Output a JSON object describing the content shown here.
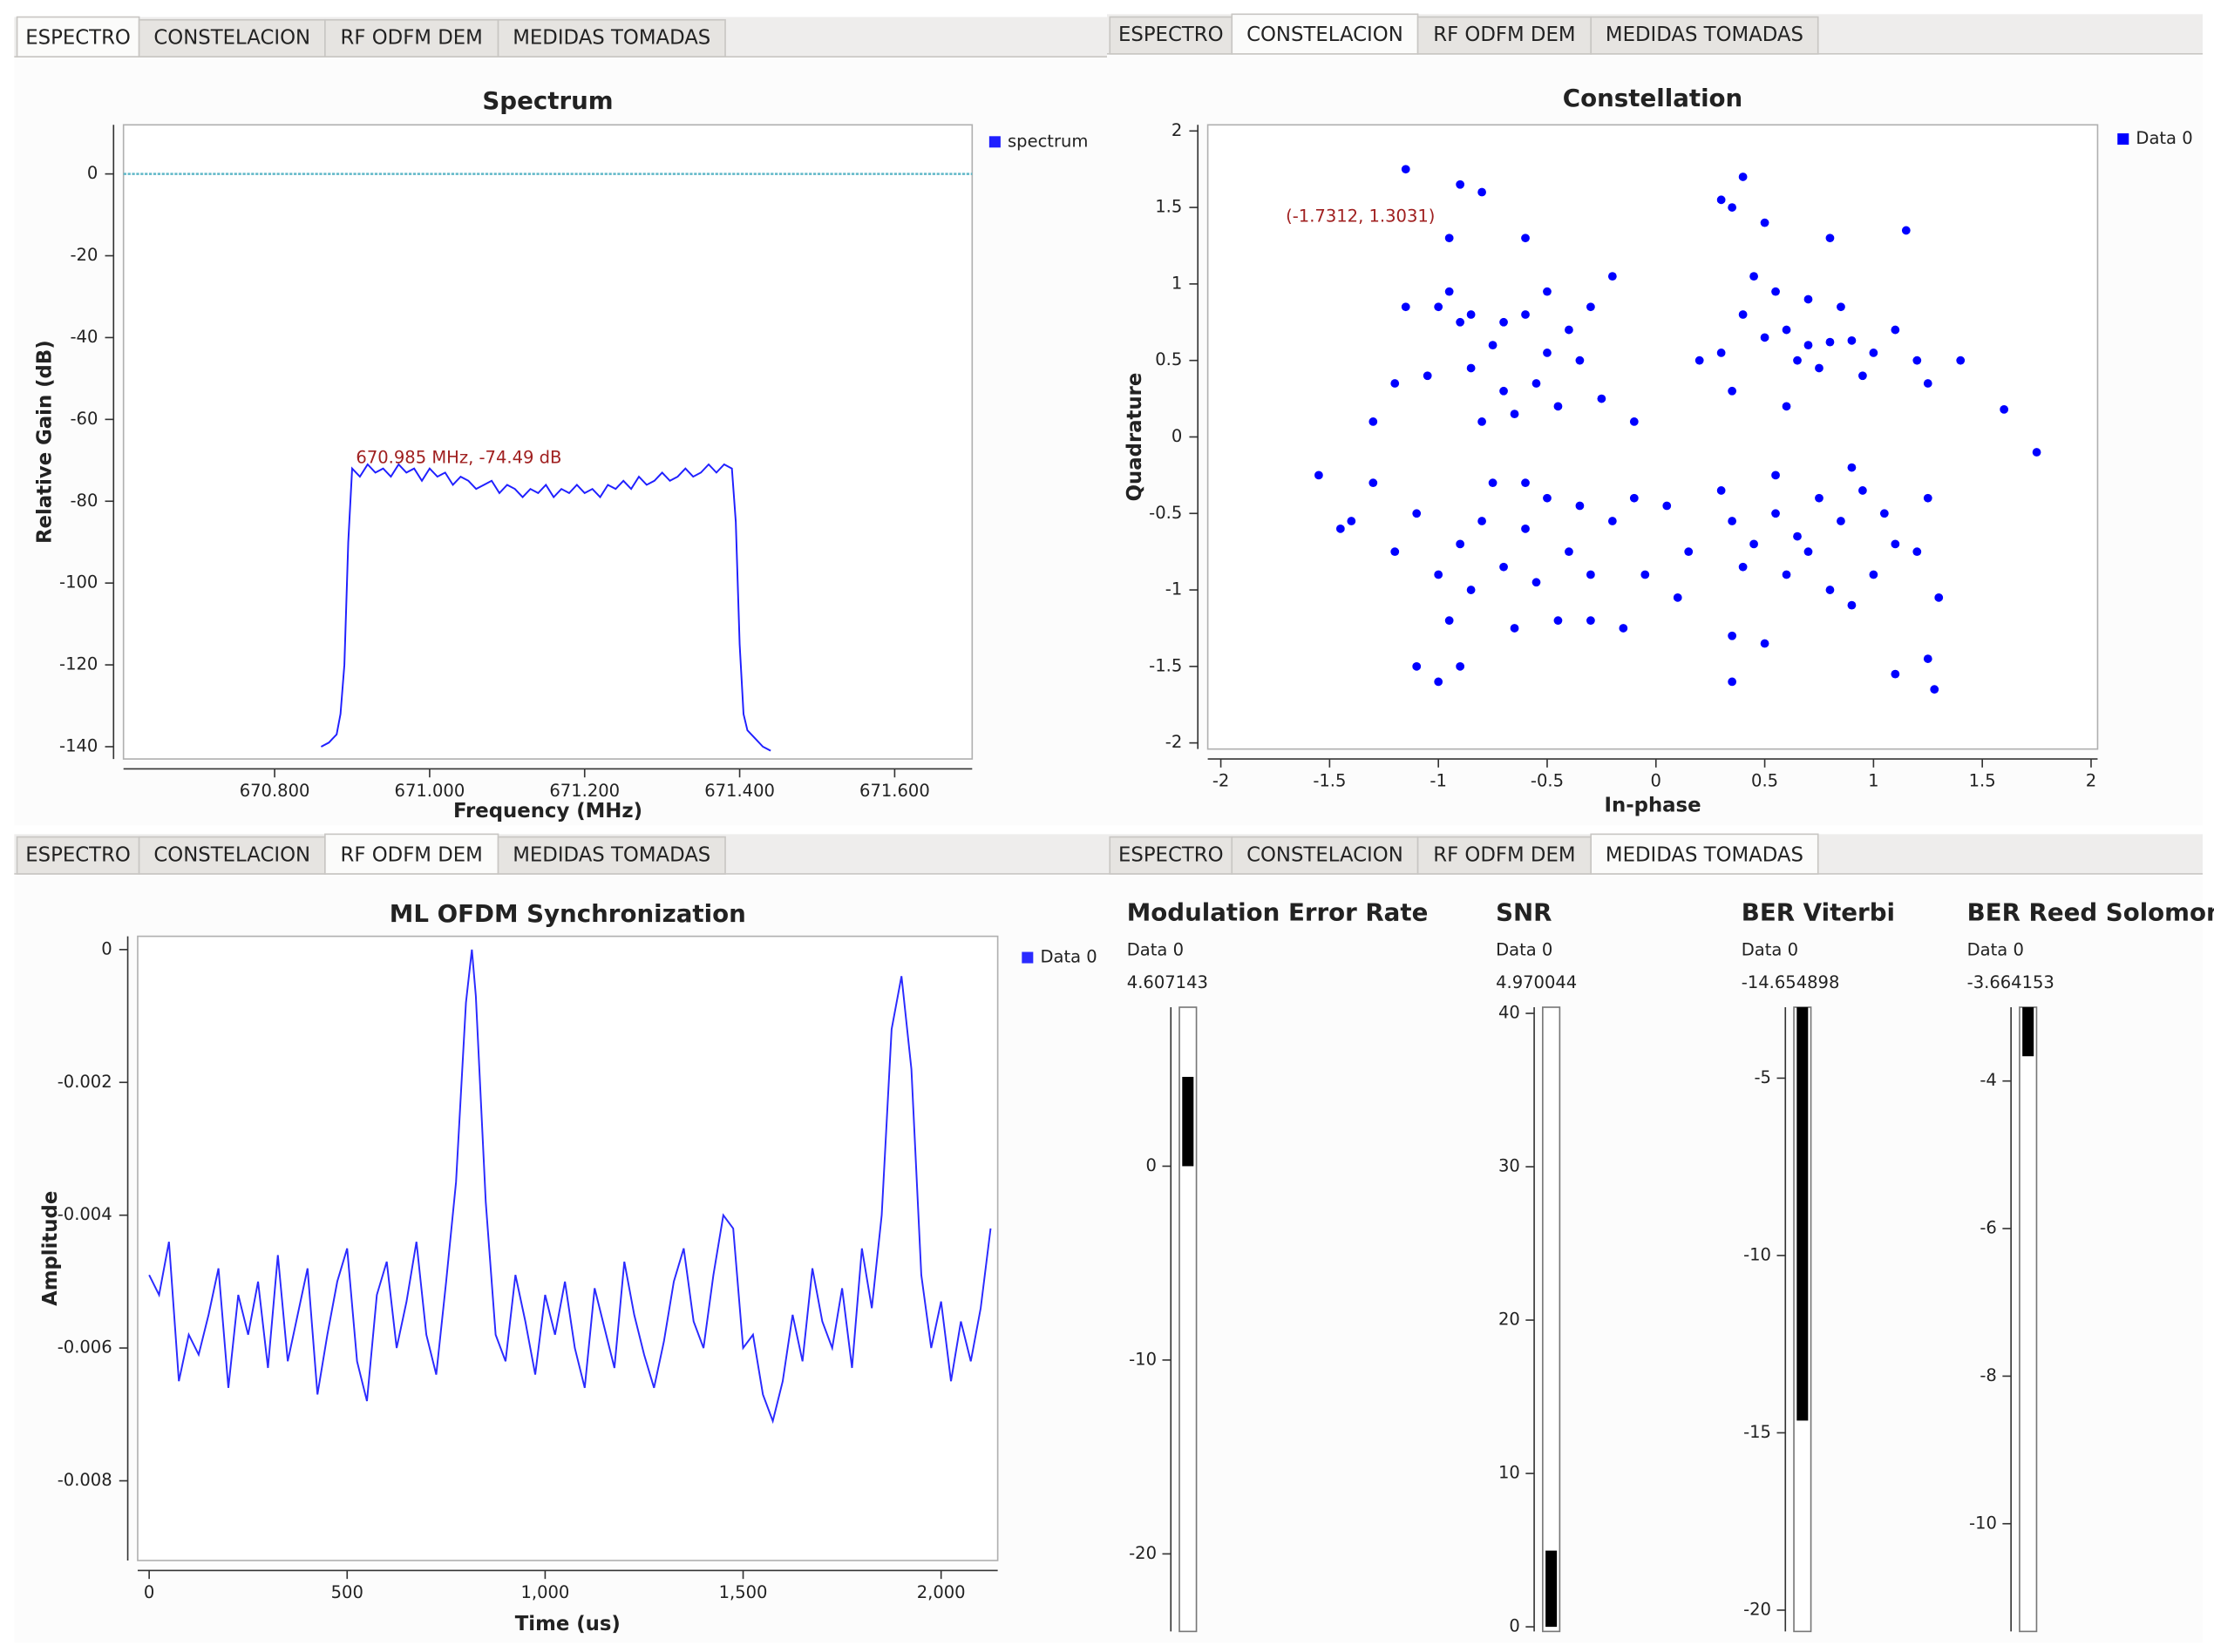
{
  "tabs": [
    "ESPECTRO",
    "CONSTELACION",
    "RF ODFM DEM",
    "MEDIDAS TOMADAS"
  ],
  "chart_data": [
    {
      "type": "line",
      "title": "Spectrum",
      "xlabel": "Frequency (MHz)",
      "ylabel": "Relative Gain (dB)",
      "annotation": "670.985 MHz, -74.49 dB",
      "reference_line": {
        "value": 0,
        "color": "#5fb8c8"
      },
      "xlim": [
        670.605,
        671.7
      ],
      "ylim": [
        -143,
        12
      ],
      "xticks": [
        {
          "value": 670.8,
          "label": "670.800"
        },
        {
          "value": 671.0,
          "label": "671.000"
        },
        {
          "value": 671.2,
          "label": "671.200"
        },
        {
          "value": 671.4,
          "label": "671.400"
        },
        {
          "value": 671.6,
          "label": "671.600"
        }
      ],
      "yticks": [
        0,
        -20,
        -40,
        -60,
        -80,
        -100,
        -120,
        -140
      ],
      "x": [
        670.86,
        670.87,
        670.88,
        670.885,
        670.89,
        670.895,
        670.9,
        670.91,
        670.92,
        670.93,
        670.94,
        670.95,
        670.96,
        670.97,
        670.98,
        670.99,
        671.0,
        671.01,
        671.02,
        671.03,
        671.04,
        671.05,
        671.06,
        671.07,
        671.08,
        671.09,
        671.1,
        671.11,
        671.12,
        671.13,
        671.14,
        671.15,
        671.16,
        671.17,
        671.18,
        671.19,
        671.2,
        671.21,
        671.22,
        671.23,
        671.24,
        671.25,
        671.26,
        671.27,
        671.28,
        671.29,
        671.3,
        671.31,
        671.32,
        671.33,
        671.34,
        671.35,
        671.36,
        671.37,
        671.38,
        671.39,
        671.395,
        671.4,
        671.405,
        671.41,
        671.42,
        671.43,
        671.44
      ],
      "series": [
        {
          "name": "spectrum",
          "color": "#1f1fff",
          "values": [
            -140,
            -139,
            -137,
            -132,
            -120,
            -90,
            -72,
            -74,
            -71,
            -73,
            -72,
            -74,
            -71,
            -73,
            -72,
            -75,
            -72,
            -74,
            -73,
            -76,
            -74,
            -75,
            -77,
            -76,
            -75,
            -78,
            -76,
            -77,
            -79,
            -77,
            -78,
            -76,
            -79,
            -77,
            -78,
            -76,
            -78,
            -77,
            -79,
            -76,
            -77,
            -75,
            -77,
            -74,
            -76,
            -75,
            -73,
            -75,
            -74,
            -72,
            -74,
            -73,
            -71,
            -73,
            -71,
            -72,
            -85,
            -115,
            -132,
            -136,
            -138,
            -140,
            -141
          ]
        }
      ]
    },
    {
      "type": "scatter",
      "title": "Constellation",
      "xlabel": "In-phase",
      "ylabel": "Quadrature",
      "annotation": "(-1.7312, 1.3031)",
      "xlim": [
        -2.06,
        2.03
      ],
      "ylim": [
        -2.04,
        2.04
      ],
      "xticks": [
        -2,
        -1.5,
        -1,
        -0.5,
        0,
        0.5,
        1,
        1.5,
        2
      ],
      "yticks": [
        -2,
        -1.5,
        -1,
        -0.5,
        0,
        0.5,
        1,
        1.5,
        2
      ],
      "series": [
        {
          "name": "Data 0",
          "color": "#0000ff",
          "x": [
            -0.9,
            -0.75,
            -0.6,
            -0.5,
            -0.4,
            -0.3,
            -0.85,
            -0.7,
            -0.55,
            -0.45,
            -1.0,
            -1.05,
            -0.95,
            -0.9,
            -0.8,
            -0.6,
            -0.2,
            -0.35,
            -0.65,
            -0.8,
            -1.15,
            -1.2,
            -1.3,
            -0.25,
            -0.1,
            -1.15,
            -0.85,
            -0.7,
            -0.5,
            -0.95,
            0.4,
            0.5,
            0.6,
            0.7,
            0.8,
            0.9,
            0.55,
            0.45,
            0.65,
            0.75,
            0.3,
            0.2,
            1.0,
            1.1,
            1.2,
            1.25,
            0.35,
            0.4,
            0.5,
            0.3,
            0.8,
            1.15,
            1.6,
            1.75,
            0.95,
            0.6,
            0.35,
            0.85,
            1.4,
            0.7,
            -0.9,
            -0.8,
            -0.7,
            -0.6,
            -0.5,
            -0.4,
            -0.3,
            -0.2,
            -1.0,
            -1.1,
            -0.75,
            -0.55,
            -0.45,
            -0.65,
            -0.95,
            -1.1,
            -1.0,
            -0.9,
            -1.55,
            -1.4,
            -1.3,
            -0.15,
            -0.3,
            -1.2,
            -0.85,
            -0.6,
            -0.35,
            -0.1,
            -0.05,
            -1.45,
            0.35,
            0.45,
            0.55,
            0.65,
            0.75,
            0.85,
            0.95,
            1.05,
            0.4,
            0.6,
            0.7,
            0.8,
            0.9,
            1.1,
            1.2,
            1.25,
            0.35,
            0.5,
            0.35,
            0.9,
            1.1,
            1.25,
            1.28,
            0.15,
            0.1,
            0.3,
            1.0,
            0.55,
            0.05,
            1.3
          ],
          "values": [
            0.75,
            0.6,
            0.8,
            0.55,
            0.7,
            0.85,
            0.45,
            0.3,
            0.35,
            0.2,
            0.85,
            0.4,
            1.3,
            1.65,
            1.6,
            1.3,
            1.05,
            0.5,
            0.15,
            0.1,
            0.85,
            0.35,
            0.1,
            0.25,
            0.1,
            1.75,
            0.8,
            0.75,
            0.95,
            0.95,
            0.8,
            0.65,
            0.7,
            0.6,
            0.62,
            0.63,
            0.95,
            1.05,
            0.5,
            0.45,
            0.55,
            0.5,
            0.55,
            0.7,
            0.5,
            0.35,
            1.5,
            1.7,
            1.4,
            1.55,
            1.3,
            1.35,
            0.18,
            -0.1,
            0.4,
            0.2,
            0.3,
            0.85,
            0.5,
            0.9,
            -0.7,
            -0.55,
            -0.85,
            -0.6,
            -0.4,
            -0.75,
            -0.9,
            -0.55,
            -0.9,
            -0.5,
            -0.3,
            -0.95,
            -1.2,
            -1.25,
            -1.2,
            -1.5,
            -1.6,
            -1.5,
            -0.25,
            -0.55,
            -0.3,
            -1.25,
            -1.2,
            -0.75,
            -1.0,
            -0.3,
            -0.45,
            -0.4,
            -0.9,
            -0.6,
            -0.55,
            -0.7,
            -0.5,
            -0.65,
            -0.4,
            -0.55,
            -0.35,
            -0.5,
            -0.85,
            -0.9,
            -0.75,
            -1.0,
            -0.2,
            -0.7,
            -0.75,
            -0.4,
            -1.3,
            -1.35,
            -1.6,
            -1.1,
            -1.55,
            -1.45,
            -1.65,
            -0.75,
            -1.05,
            -0.35,
            -0.9,
            -0.25,
            -0.45,
            -1.05
          ]
        }
      ]
    },
    {
      "type": "line",
      "title": "ML OFDM Synchronization",
      "xlabel": "Time (us)",
      "ylabel": "Amplitude",
      "xlim": [
        -29,
        2143
      ],
      "ylim": [
        -0.0092,
        0.0002
      ],
      "xticks": [
        0,
        500,
        {
          "value": 1000,
          "label": "1,000"
        },
        {
          "value": 1500,
          "label": "1,500"
        },
        {
          "value": 2000,
          "label": "2,000"
        }
      ],
      "yticks": [
        0,
        -0.002,
        -0.004,
        -0.006,
        -0.008
      ],
      "x": [
        0,
        25,
        50,
        75,
        100,
        125,
        150,
        175,
        200,
        225,
        250,
        275,
        300,
        325,
        350,
        375,
        400,
        425,
        450,
        475,
        500,
        525,
        550,
        575,
        600,
        625,
        650,
        675,
        700,
        725,
        750,
        775,
        800,
        815,
        825,
        850,
        875,
        900,
        925,
        950,
        975,
        1000,
        1025,
        1050,
        1075,
        1100,
        1125,
        1150,
        1175,
        1200,
        1225,
        1250,
        1275,
        1300,
        1325,
        1350,
        1375,
        1400,
        1425,
        1450,
        1475,
        1500,
        1525,
        1550,
        1575,
        1600,
        1625,
        1650,
        1675,
        1700,
        1725,
        1750,
        1775,
        1800,
        1825,
        1850,
        1875,
        1900,
        1925,
        1950,
        1975,
        2000,
        2025,
        2050,
        2075,
        2100,
        2125
      ],
      "series": [
        {
          "name": "Data 0",
          "color": "#2a2aff",
          "values": [
            -0.0049,
            -0.0052,
            -0.0044,
            -0.0065,
            -0.0058,
            -0.0061,
            -0.0055,
            -0.0048,
            -0.0066,
            -0.0052,
            -0.0058,
            -0.005,
            -0.0063,
            -0.0046,
            -0.0062,
            -0.0055,
            -0.0048,
            -0.0067,
            -0.0058,
            -0.005,
            -0.0045,
            -0.0062,
            -0.0068,
            -0.0052,
            -0.0047,
            -0.006,
            -0.0053,
            -0.0044,
            -0.0058,
            -0.0064,
            -0.005,
            -0.0035,
            -0.0008,
            0,
            -0.0007,
            -0.0038,
            -0.0058,
            -0.0062,
            -0.0049,
            -0.0056,
            -0.0064,
            -0.0052,
            -0.0058,
            -0.005,
            -0.006,
            -0.0066,
            -0.0051,
            -0.0057,
            -0.0063,
            -0.0047,
            -0.0055,
            -0.0061,
            -0.0066,
            -0.0059,
            -0.005,
            -0.0045,
            -0.0056,
            -0.006,
            -0.0049,
            -0.004,
            -0.0042,
            -0.006,
            -0.0058,
            -0.0067,
            -0.0071,
            -0.0065,
            -0.0055,
            -0.0062,
            -0.0048,
            -0.0056,
            -0.006,
            -0.0051,
            -0.0063,
            -0.0045,
            -0.0054,
            -0.004,
            -0.0012,
            -0.0004,
            -0.0018,
            -0.0049,
            -0.006,
            -0.0053,
            -0.0065,
            -0.0056,
            -0.0062,
            -0.0054,
            -0.0042
          ]
        }
      ]
    },
    {
      "type": "gauge",
      "title": "Modulation Error Rate",
      "color": "#000000",
      "ylim": [
        -24,
        8.2
      ],
      "yticks": [
        0,
        -10,
        -20
      ],
      "series": [
        {
          "name": "Data 0",
          "values": [
            4.607143
          ]
        }
      ]
    },
    {
      "type": "gauge",
      "title": "SNR",
      "color": "#000000",
      "ylim": [
        -0.3,
        40.4
      ],
      "yticks": [
        0,
        10,
        20,
        30,
        40
      ],
      "series": [
        {
          "name": "Data 0",
          "values": [
            4.970044
          ]
        }
      ]
    },
    {
      "type": "gauge",
      "title": "BER Viterbi",
      "color": "#000000",
      "ylim": [
        -20.6,
        -3
      ],
      "yticks": [
        -5,
        -10,
        -15,
        -20
      ],
      "series": [
        {
          "name": "Data 0",
          "values": [
            -14.654898
          ]
        }
      ]
    },
    {
      "type": "gauge",
      "title": "BER Reed Solomon",
      "color": "#000000",
      "ylim": [
        -11.46,
        -3
      ],
      "yticks": [
        -4,
        -6,
        -8,
        -10
      ],
      "series": [
        {
          "name": "Data 0",
          "values": [
            -3.664153
          ]
        }
      ]
    }
  ]
}
